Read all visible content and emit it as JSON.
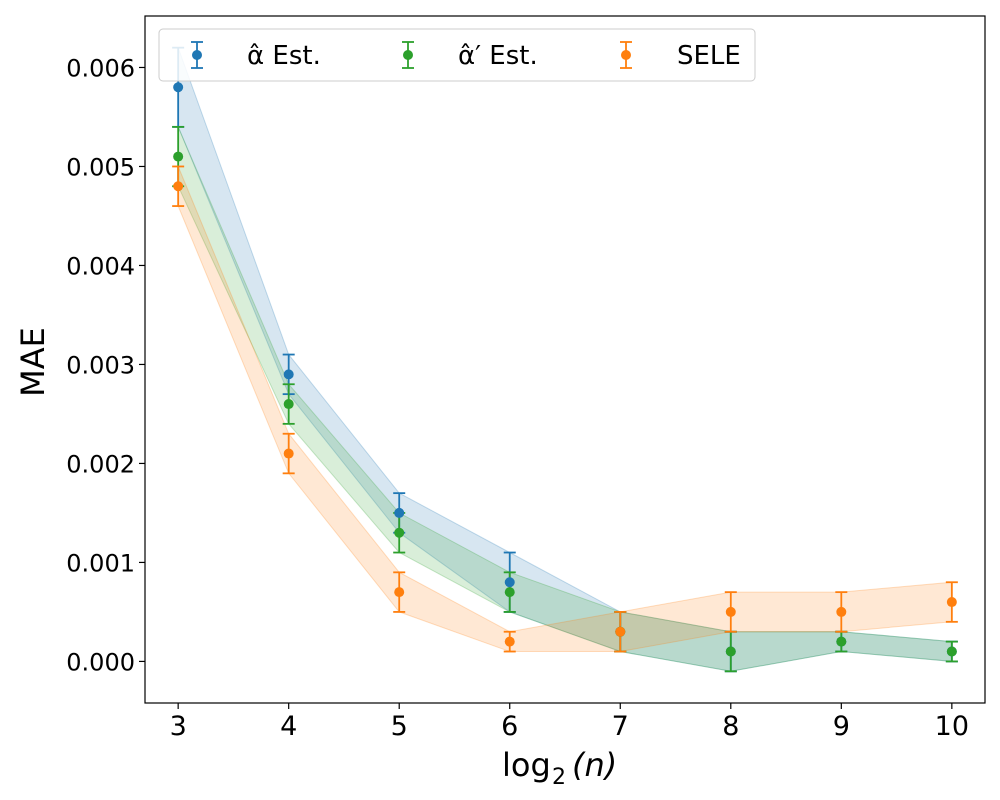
{
  "chart_data": {
    "type": "line",
    "title": "",
    "xlabel": "log₂(n)",
    "ylabel": "MAE",
    "x": [
      3,
      4,
      5,
      6,
      7,
      8,
      9,
      10
    ],
    "xlim": [
      2.7,
      10.3
    ],
    "ylim": [
      -0.00042,
      0.00652
    ],
    "x_ticks": [
      3,
      4,
      5,
      6,
      7,
      8,
      9,
      10
    ],
    "x_tick_labels": [
      "3",
      "4",
      "5",
      "6",
      "7",
      "8",
      "9",
      "10"
    ],
    "y_ticks": [
      0,
      0.001,
      0.002,
      0.003,
      0.004,
      0.005,
      0.006
    ],
    "y_tick_labels": [
      "0.000",
      "0.001",
      "0.002",
      "0.003",
      "0.004",
      "0.005",
      "0.006"
    ],
    "grid": false,
    "legend_position": "top-left",
    "series": [
      {
        "key": "alpha-hat",
        "name": "α̂ Est.",
        "color": "#1f77b4",
        "band_color": "#aec7e8",
        "values": [
          0.0058,
          0.0029,
          0.0015,
          0.0008,
          0.0003,
          0.0001,
          0.0002,
          0.0001
        ],
        "err": [
          0.0004,
          0.0002,
          0.0002,
          0.0003,
          0.0002,
          0.0002,
          0.0001,
          0.0001
        ]
      },
      {
        "key": "alpha-prime",
        "name": "α̂′ Est.",
        "color": "#2ca02c",
        "band_color": "#98df8a",
        "values": [
          0.0051,
          0.0026,
          0.0013,
          0.0007,
          0.0003,
          0.0001,
          0.0002,
          0.0001
        ],
        "err": [
          0.0003,
          0.0002,
          0.0002,
          0.0002,
          0.0002,
          0.0002,
          0.0001,
          0.0001
        ]
      },
      {
        "key": "sele",
        "name": "SELE",
        "color": "#ff7f0e",
        "band_color": "#ffbb78",
        "values": [
          0.0048,
          0.0021,
          0.0007,
          0.0002,
          0.0003,
          0.0005,
          0.0005,
          0.0006
        ],
        "err": [
          0.0002,
          0.0002,
          0.0002,
          0.0001,
          0.0002,
          0.0002,
          0.0002,
          0.0002
        ]
      }
    ]
  }
}
